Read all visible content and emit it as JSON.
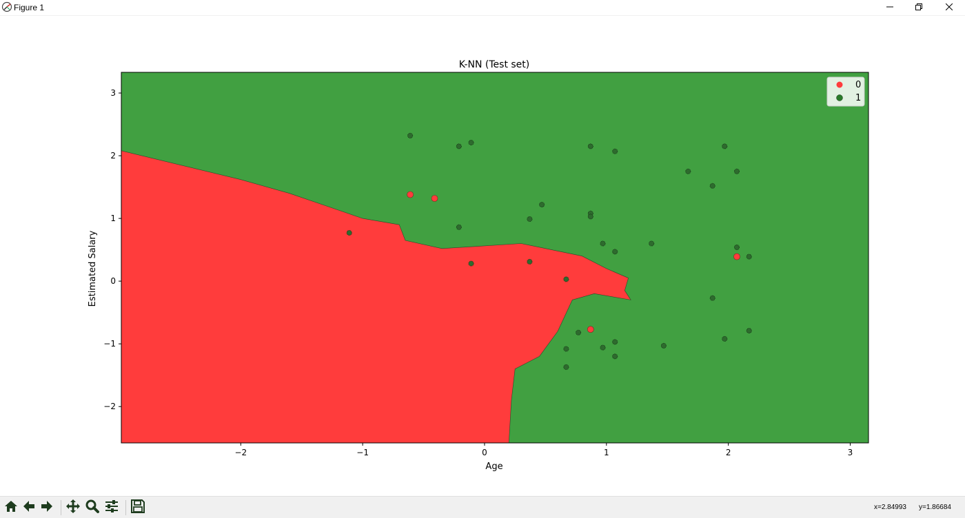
{
  "window": {
    "title": "Figure 1",
    "icons": {
      "app": "matplotlib-icon",
      "minimize": "minimize-icon",
      "maximize": "restore-icon",
      "close": "close-icon"
    }
  },
  "toolbar": {
    "buttons": [
      {
        "name": "home-icon"
      },
      {
        "name": "back-arrow-icon"
      },
      {
        "name": "forward-arrow-icon"
      },
      {
        "name": "pan-icon"
      },
      {
        "name": "zoom-icon"
      },
      {
        "name": "configure-subplots-icon"
      },
      {
        "name": "save-icon"
      }
    ],
    "x_readout": "x=2.84993",
    "y_readout": "y=1.86684"
  },
  "chart_data": {
    "type": "scatter",
    "title": "K-NN (Test set)",
    "xlabel": "Age",
    "ylabel": "Estimated Salary",
    "xlim": [
      -2.98,
      3.15
    ],
    "ylim": [
      -2.58,
      3.33
    ],
    "xticks": [
      -2,
      -1,
      0,
      1,
      2,
      3
    ],
    "yticks": [
      -2,
      -1,
      0,
      1,
      2,
      3
    ],
    "xtick_labels": [
      "−2",
      "−1",
      "0",
      "1",
      "2",
      "3"
    ],
    "ytick_labels": [
      "−2",
      "−1",
      "0",
      "1",
      "2",
      "3"
    ],
    "grid": false,
    "legend_position": "top-right",
    "colors": {
      "class0": "#ff3c3c",
      "class1": "#41a041",
      "region0": "#ff3c3c",
      "region1": "#41a041"
    },
    "region_0_boundary": [
      [
        -2.98,
        2.08
      ],
      [
        -2.0,
        1.62
      ],
      [
        -1.6,
        1.4
      ],
      [
        -1.3,
        1.2
      ],
      [
        -1.0,
        1.0
      ],
      [
        -0.7,
        0.9
      ],
      [
        -0.65,
        0.65
      ],
      [
        -0.35,
        0.52
      ],
      [
        -0.1,
        0.55
      ],
      [
        0.3,
        0.6
      ],
      [
        0.55,
        0.5
      ],
      [
        0.8,
        0.4
      ],
      [
        1.0,
        0.2
      ],
      [
        1.18,
        0.05
      ],
      [
        1.15,
        -0.15
      ],
      [
        1.2,
        -0.3
      ],
      [
        0.9,
        -0.2
      ],
      [
        0.72,
        -0.3
      ],
      [
        0.6,
        -0.8
      ],
      [
        0.45,
        -1.2
      ],
      [
        0.25,
        -1.4
      ],
      [
        0.22,
        -1.9
      ],
      [
        0.2,
        -2.58
      ],
      [
        -2.98,
        -2.58
      ]
    ],
    "series": [
      {
        "name": "0",
        "points": [
          [
            -0.61,
            1.38
          ],
          [
            -0.41,
            1.32
          ],
          [
            2.07,
            0.39
          ],
          [
            0.87,
            -0.77
          ]
        ]
      },
      {
        "name": "1",
        "points": [
          [
            -0.61,
            2.32
          ],
          [
            -0.21,
            2.15
          ],
          [
            -0.11,
            2.21
          ],
          [
            0.87,
            2.15
          ],
          [
            1.07,
            2.07
          ],
          [
            1.97,
            2.15
          ],
          [
            1.67,
            1.75
          ],
          [
            2.07,
            1.75
          ],
          [
            1.87,
            1.52
          ],
          [
            0.47,
            1.22
          ],
          [
            0.87,
            1.08
          ],
          [
            0.87,
            1.03
          ],
          [
            0.37,
            0.99
          ],
          [
            -0.21,
            0.86
          ],
          [
            -1.11,
            0.77
          ],
          [
            0.97,
            0.6
          ],
          [
            1.37,
            0.6
          ],
          [
            1.07,
            0.47
          ],
          [
            2.07,
            0.54
          ],
          [
            2.17,
            0.39
          ],
          [
            -0.11,
            0.28
          ],
          [
            0.37,
            0.31
          ],
          [
            0.67,
            0.03
          ],
          [
            1.87,
            -0.27
          ],
          [
            2.17,
            -0.79
          ],
          [
            1.97,
            -0.92
          ],
          [
            1.47,
            -1.03
          ],
          [
            1.07,
            -0.97
          ],
          [
            0.77,
            -0.82
          ],
          [
            0.97,
            -1.06
          ],
          [
            0.67,
            -1.08
          ],
          [
            1.07,
            -1.2
          ],
          [
            0.67,
            -1.37
          ]
        ]
      }
    ]
  }
}
